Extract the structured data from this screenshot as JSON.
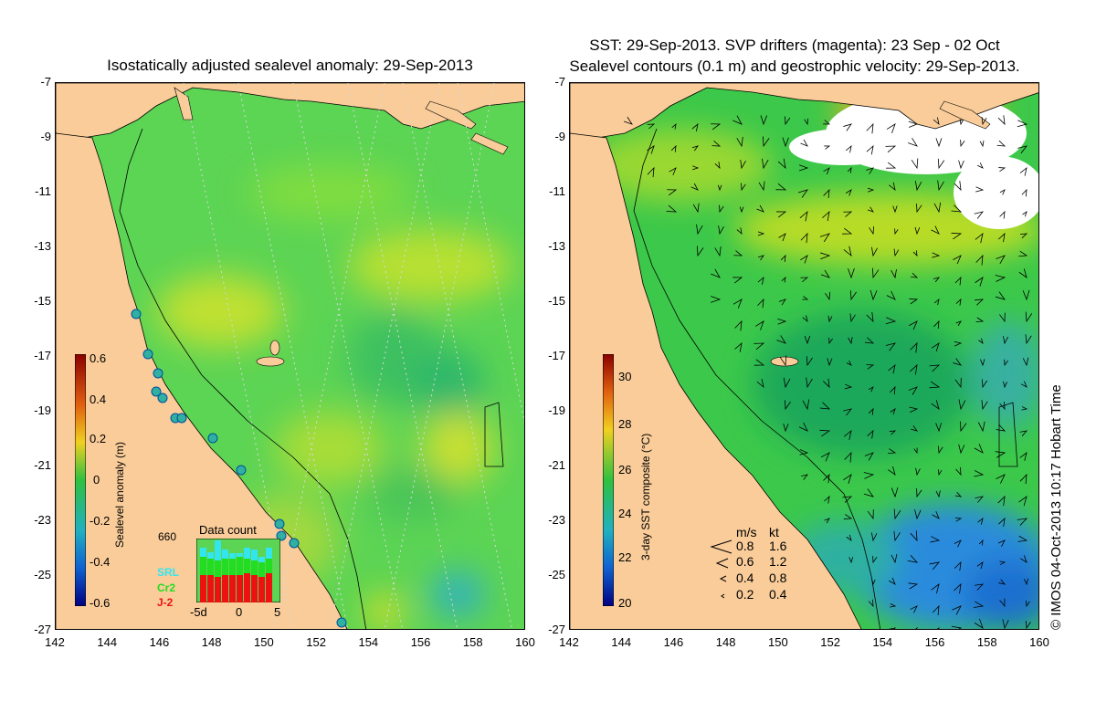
{
  "left_panel": {
    "title": "Isostatically adjusted sealevel anomaly: 29-Sep-2013",
    "colorbar": {
      "label": "Sealevel anomaly (m)",
      "ticks": [
        "0.6",
        "0.4",
        "0.2",
        "0",
        "-0.2",
        "-0.4",
        "-0.6"
      ]
    },
    "inset": {
      "title": "Data count",
      "max_label": "660",
      "x_labels": [
        "-5d",
        "0",
        "5"
      ],
      "series": [
        {
          "name": "SRL",
          "color": "#33e6ee"
        },
        {
          "name": "Cr2",
          "color": "#22dd22"
        },
        {
          "name": "J-2",
          "color": "#ee1111"
        }
      ]
    }
  },
  "right_panel": {
    "title_line1": "SST: 29-Sep-2013. SVP drifters (magenta): 23 Sep - 02 Oct",
    "title_line2": "Sealevel contours (0.1 m) and geostrophic velocity: 29-Sep-2013.",
    "colorbar": {
      "label": "3-day SST composite (°C)",
      "ticks": [
        "30",
        "28",
        "26",
        "24",
        "22",
        "20"
      ]
    },
    "velocity_legend": {
      "header_ms": "m/s",
      "header_kt": "kt",
      "rows": [
        {
          "ms": "0.8",
          "kt": "1.6"
        },
        {
          "ms": "0.6",
          "kt": "1.2"
        },
        {
          "ms": "0.4",
          "kt": "0.8"
        },
        {
          "ms": "0.2",
          "kt": "0.4"
        }
      ]
    }
  },
  "axes": {
    "y_ticks": [
      "-7",
      "-9",
      "-11",
      "-13",
      "-15",
      "-17",
      "-19",
      "-21",
      "-23",
      "-25",
      "-27"
    ],
    "x_ticks": [
      "142",
      "144",
      "146",
      "148",
      "150",
      "152",
      "154",
      "156",
      "158",
      "160"
    ]
  },
  "copyright": "© IMOS 04-Oct-2013 10:17 Hobart Time",
  "colors": {
    "land": "#f9cc99",
    "sea_green": "#5cd454",
    "sst_cold": "#2a8bdc",
    "sst_warm": "#f0a020"
  }
}
